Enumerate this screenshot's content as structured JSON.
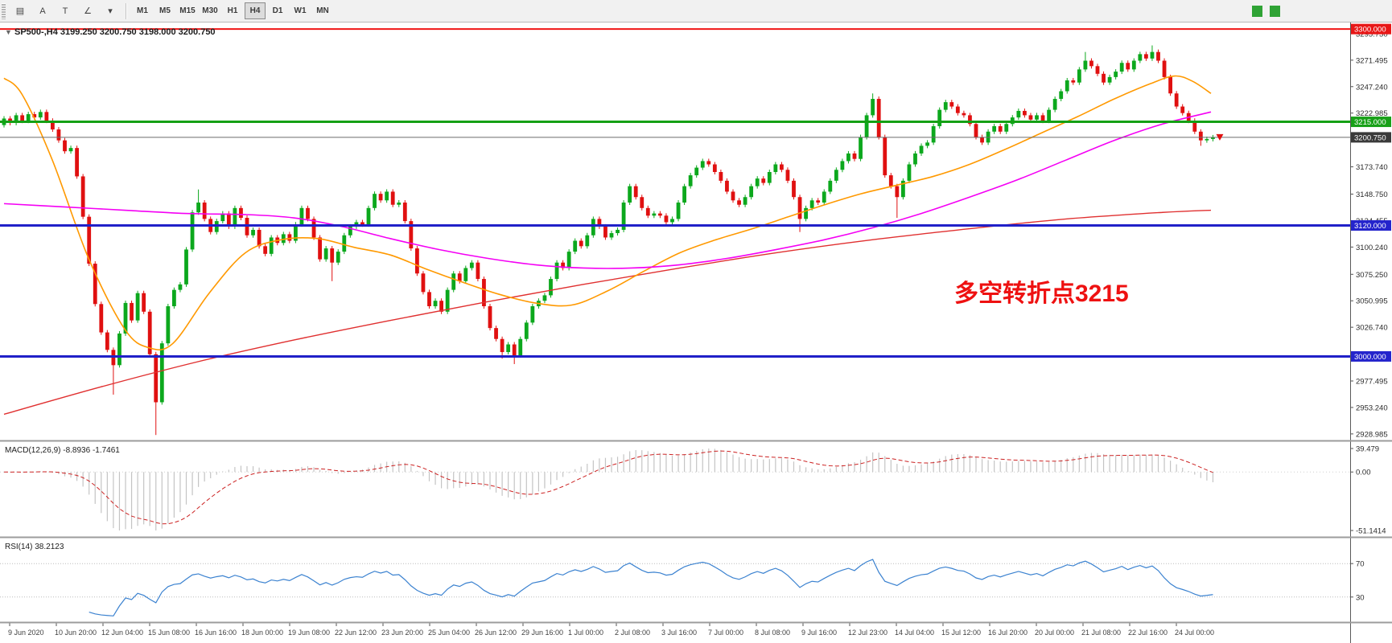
{
  "toolbar": {
    "icons": [
      {
        "name": "chart-list-icon",
        "glyph": "▤"
      },
      {
        "name": "text-label-icon",
        "glyph": "A"
      },
      {
        "name": "text-tool-icon",
        "glyph": "T"
      },
      {
        "name": "shapes-tool-icon",
        "glyph": "∠"
      },
      {
        "name": "shapes-dropdown-caret",
        "glyph": "▾"
      }
    ],
    "timeframes": [
      "M1",
      "M5",
      "M15",
      "M30",
      "H1",
      "H4",
      "D1",
      "W1",
      "MN"
    ],
    "active_timeframe": "H4"
  },
  "chart": {
    "title_marker": "▼",
    "title": "SP500-,H4  3199.250 3200.750 3198.000 3200.750",
    "annotation": {
      "text": "多空转折点3215",
      "color": "#ee1111"
    },
    "colors": {
      "bull": "#0ca81d",
      "bear": "#e01010",
      "ma_orange": "#ff9900",
      "ma_magenta": "#f400f4",
      "ma_red": "#e03030",
      "current_line": "#6b6b6b",
      "scale_text": "#2b2b2b"
    },
    "price_axis": {
      "pmin": 2923,
      "pmax": 3306,
      "labels": [
        {
          "t": "3295.750",
          "p": 3295.75
        },
        {
          "t": "3271.495",
          "p": 3271.495
        },
        {
          "t": "3247.240",
          "p": 3247.24
        },
        {
          "t": "3222.985",
          "p": 3222.985
        },
        {
          "t": "3173.740",
          "p": 3173.74
        },
        {
          "t": "3148.750",
          "p": 3148.75
        },
        {
          "t": "3124.455",
          "p": 3124.455
        },
        {
          "t": "3100.240",
          "p": 3100.24
        },
        {
          "t": "3075.250",
          "p": 3075.25
        },
        {
          "t": "3050.995",
          "p": 3050.995
        },
        {
          "t": "3026.740",
          "p": 3026.74
        },
        {
          "t": "2977.495",
          "p": 2977.495
        },
        {
          "t": "2953.240",
          "p": 2953.24
        },
        {
          "t": "2928.985",
          "p": 2928.985
        }
      ]
    },
    "hlines": [
      {
        "price": 3300,
        "color": "#f01515",
        "width": 2,
        "badge": "3300.000",
        "badge_bg": "#e81717",
        "name": "hline-3300"
      },
      {
        "price": 3215,
        "color": "#14a014",
        "width": 3,
        "badge": "3215.000",
        "badge_bg": "#18a018",
        "name": "hline-3215"
      },
      {
        "price": 3120,
        "color": "#2020c8",
        "width": 3,
        "badge": "3120.000",
        "badge_bg": "#2424cc",
        "name": "hline-3120"
      },
      {
        "price": 3000,
        "color": "#2020c8",
        "width": 3,
        "badge": "3000.000",
        "badge_bg": "#2424cc",
        "name": "hline-3000"
      }
    ],
    "current_price": {
      "value": 3200.75,
      "badge": "3200.750",
      "badge_bg": "#3a3a3a",
      "marker_color": "#e01010"
    },
    "candles": {
      "open_first": 3212,
      "wick_margin": 2.2,
      "closes": [
        3218,
        3214,
        3221,
        3216,
        3222,
        3219,
        3224,
        3216,
        3208,
        3198,
        3188,
        3191,
        3165,
        3128,
        3085,
        3048,
        3022,
        3006,
        2992,
        3021,
        3049,
        3033,
        3058,
        3041,
        3002,
        2958,
        3012,
        3046,
        3061,
        3066,
        3098,
        3132,
        3141,
        3126,
        3114,
        3124,
        3131,
        3119,
        3136,
        3127,
        3111,
        3116,
        3101,
        3094,
        3109,
        3104,
        3112,
        3106,
        3121,
        3136,
        3126,
        3109,
        3089,
        3099,
        3086,
        3096,
        3111,
        3119,
        3123,
        3121,
        3136,
        3149,
        3143,
        3151,
        3139,
        3141,
        3124,
        3099,
        3076,
        3059,
        3046,
        3051,
        3041,
        3061,
        3076,
        3069,
        3081,
        3086,
        3071,
        3046,
        3026,
        3016,
        3004,
        3011,
        3001,
        3016,
        3031,
        3046,
        3051,
        3056,
        3071,
        3086,
        3081,
        3096,
        3106,
        3101,
        3111,
        3126,
        3119,
        3109,
        3113,
        3116,
        3141,
        3156,
        3146,
        3136,
        3129,
        3131,
        3129,
        3123,
        3126,
        3141,
        3156,
        3166,
        3173,
        3179,
        3176,
        3169,
        3161,
        3151,
        3143,
        3139,
        3146,
        3156,
        3163,
        3159,
        3169,
        3176,
        3171,
        3161,
        3146,
        3126,
        3136,
        3143,
        3141,
        3151,
        3161,
        3171,
        3179,
        3186,
        3181,
        3201,
        3221,
        3236,
        3201,
        3166,
        3156,
        3146,
        3161,
        3176,
        3186,
        3193,
        3196,
        3211,
        3226,
        3233,
        3229,
        3223,
        3221,
        3213,
        3201,
        3196,
        3206,
        3211,
        3206,
        3213,
        3219,
        3225,
        3221,
        3217,
        3221,
        3216,
        3226,
        3236,
        3243,
        3253,
        3251,
        3263,
        3271,
        3266,
        3259,
        3251,
        3256,
        3261,
        3269,
        3263,
        3271,
        3277,
        3273,
        3279,
        3271,
        3256,
        3241,
        3229,
        3223,
        3216,
        3206,
        3198,
        3199.25,
        3200.75
      ],
      "low_overrides": {
        "18": 2965,
        "25": 2928,
        "54": 3069,
        "82": 2998,
        "84": 2993,
        "131": 3114,
        "147": 3127,
        "197": 3193
      },
      "high_overrides": {
        "32": 3153,
        "143": 3241,
        "178": 3279,
        "189": 3285
      }
    },
    "ma": {
      "orange": [
        [
          0,
          3255
        ],
        [
          0.015,
          3240
        ],
        [
          0.04,
          3180
        ],
        [
          0.07,
          3090
        ],
        [
          0.1,
          3025
        ],
        [
          0.12,
          3008
        ],
        [
          0.14,
          3012
        ],
        [
          0.17,
          3058
        ],
        [
          0.2,
          3095
        ],
        [
          0.23,
          3107
        ],
        [
          0.26,
          3108
        ],
        [
          0.29,
          3100
        ],
        [
          0.32,
          3093
        ],
        [
          0.35,
          3080
        ],
        [
          0.38,
          3068
        ],
        [
          0.41,
          3057
        ],
        [
          0.44,
          3049
        ],
        [
          0.47,
          3047
        ],
        [
          0.5,
          3060
        ],
        [
          0.53,
          3078
        ],
        [
          0.56,
          3095
        ],
        [
          0.59,
          3107
        ],
        [
          0.62,
          3117
        ],
        [
          0.65,
          3128
        ],
        [
          0.68,
          3139
        ],
        [
          0.71,
          3149
        ],
        [
          0.74,
          3157
        ],
        [
          0.77,
          3165
        ],
        [
          0.8,
          3176
        ],
        [
          0.83,
          3190
        ],
        [
          0.86,
          3205
        ],
        [
          0.89,
          3220
        ],
        [
          0.92,
          3236
        ],
        [
          0.95,
          3250
        ],
        [
          0.97,
          3257
        ],
        [
          0.985,
          3252
        ],
        [
          1.0,
          3241
        ]
      ],
      "magenta": [
        [
          0,
          3140
        ],
        [
          0.05,
          3137
        ],
        [
          0.1,
          3134
        ],
        [
          0.15,
          3131
        ],
        [
          0.2,
          3130
        ],
        [
          0.24,
          3127
        ],
        [
          0.28,
          3119
        ],
        [
          0.32,
          3108
        ],
        [
          0.36,
          3098
        ],
        [
          0.4,
          3090
        ],
        [
          0.44,
          3084
        ],
        [
          0.48,
          3081
        ],
        [
          0.52,
          3081
        ],
        [
          0.56,
          3084
        ],
        [
          0.6,
          3090
        ],
        [
          0.64,
          3098
        ],
        [
          0.68,
          3107
        ],
        [
          0.72,
          3118
        ],
        [
          0.76,
          3131
        ],
        [
          0.8,
          3146
        ],
        [
          0.84,
          3162
        ],
        [
          0.88,
          3180
        ],
        [
          0.92,
          3198
        ],
        [
          0.96,
          3213
        ],
        [
          1.0,
          3224
        ]
      ],
      "red": [
        [
          0,
          2947
        ],
        [
          0.08,
          2972
        ],
        [
          0.16,
          2995
        ],
        [
          0.24,
          3015
        ],
        [
          0.32,
          3033
        ],
        [
          0.4,
          3050
        ],
        [
          0.48,
          3066
        ],
        [
          0.56,
          3081
        ],
        [
          0.64,
          3095
        ],
        [
          0.72,
          3107
        ],
        [
          0.8,
          3117
        ],
        [
          0.88,
          3126
        ],
        [
          0.96,
          3132
        ],
        [
          1.0,
          3134
        ]
      ]
    },
    "x_labels": [
      "9 Jun 2020",
      "10 Jun 20:00",
      "12 Jun 04:00",
      "15 Jun 08:00",
      "16 Jun 16:00",
      "18 Jun 00:00",
      "19 Jun 08:00",
      "22 Jun 12:00",
      "23 Jun 20:00",
      "25 Jun 04:00",
      "26 Jun 12:00",
      "29 Jun 16:00",
      "1 Jul 00:00",
      "2 Jul 08:00",
      "3 Jul 16:00",
      "7 Jul 00:00",
      "8 Jul 08:00",
      "9 Jul 16:00",
      "12 Jul 23:00",
      "14 Jul 04:00",
      "15 Jul 12:00",
      "16 Jul 20:00",
      "20 Jul 00:00",
      "21 Jul 08:00",
      "22 Jul 16:00",
      "24 Jul 00:00"
    ]
  },
  "macd": {
    "label": "MACD(12,26,9) -8.8936 -1.7461",
    "scale_top": "39.479",
    "scale_zero": "0.00",
    "scale_bottom": "-51.1414",
    "fast": 12,
    "slow": 26,
    "signal": 9,
    "hist_color": "#c4c4c4",
    "signal_color": "#cc2222"
  },
  "rsi": {
    "label": "RSI(14) 38.2123",
    "period": 14,
    "levels": [
      "70",
      "30"
    ],
    "level_values": [
      70,
      30
    ],
    "color": "#3b82d0"
  }
}
